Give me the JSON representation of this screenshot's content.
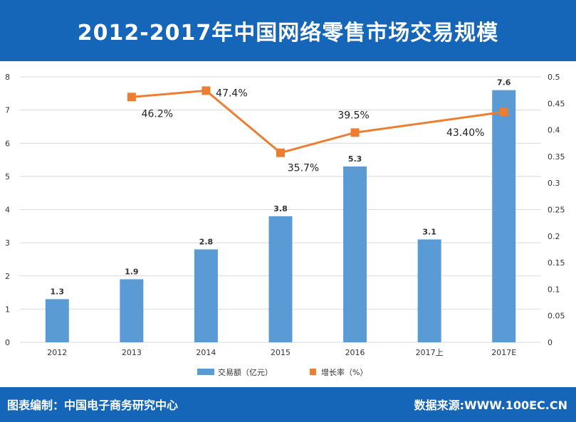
{
  "header": {
    "title": "2012-2017年中国网络零售市场交易规模"
  },
  "footer": {
    "left": "图表编制：中国电子商务研究中心",
    "right": "数据来源:WWW.100EC.CN"
  },
  "colors": {
    "bar": "#5b9bd5",
    "line": "#ed7d31",
    "frame": "#1565b8"
  },
  "chart_data": {
    "type": "bar",
    "categories": [
      "2012",
      "2013",
      "2014",
      "2015",
      "2016",
      "2017上",
      "2017E"
    ],
    "series": [
      {
        "name": "交易额（亿元）",
        "type": "bar",
        "axis": "left",
        "values": [
          1.3,
          1.9,
          2.8,
          3.8,
          5.3,
          3.1,
          7.6
        ],
        "labels": [
          "1.3",
          "1.9",
          "2.8",
          "3.8",
          "5.3",
          "3.1",
          "7.6"
        ]
      },
      {
        "name": "增长率（%）",
        "type": "line",
        "axis": "right",
        "values": [
          null,
          0.462,
          0.474,
          0.357,
          0.395,
          null,
          0.434
        ],
        "labels": [
          "",
          "46.2%",
          "47.4%",
          "35.7%",
          "39.5%",
          "",
          "43.40%"
        ]
      }
    ],
    "yaxis_left": {
      "range": [
        0,
        8
      ],
      "ticks": [
        "0",
        "1",
        "2",
        "3",
        "4",
        "5",
        "6",
        "7",
        "8"
      ]
    },
    "yaxis_right": {
      "range": [
        0,
        0.5
      ],
      "ticks": [
        "0",
        "0.05",
        "0.1",
        "0.15",
        "0.2",
        "0.25",
        "0.3",
        "0.35",
        "0.4",
        "0.45",
        "0.5"
      ]
    },
    "grid": true,
    "legend_position": "bottom"
  }
}
